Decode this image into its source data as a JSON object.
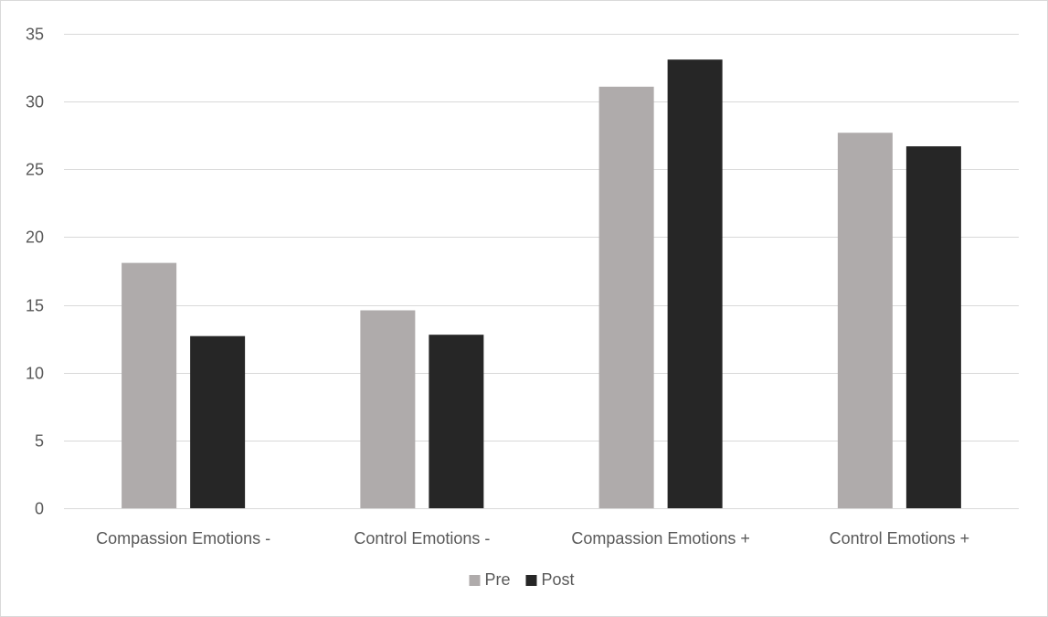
{
  "chart_data": {
    "type": "bar",
    "title": "",
    "xlabel": "",
    "ylabel": "",
    "categories": [
      "Compassion Emotions -",
      "Control Emotions -",
      "Compassion Emotions +",
      "Control Emotions +"
    ],
    "series": [
      {
        "name": "Pre",
        "values": [
          18.1,
          14.6,
          31.1,
          27.7
        ],
        "color": "#afabab"
      },
      {
        "name": "Post",
        "values": [
          12.7,
          12.8,
          33.1,
          26.7
        ],
        "color": "#262626"
      }
    ],
    "ylim": [
      0,
      35
    ],
    "yticks": [
      "0",
      "5",
      "10",
      "15",
      "20",
      "25",
      "30",
      "35"
    ],
    "grid": true,
    "legend": "bottom-center"
  }
}
